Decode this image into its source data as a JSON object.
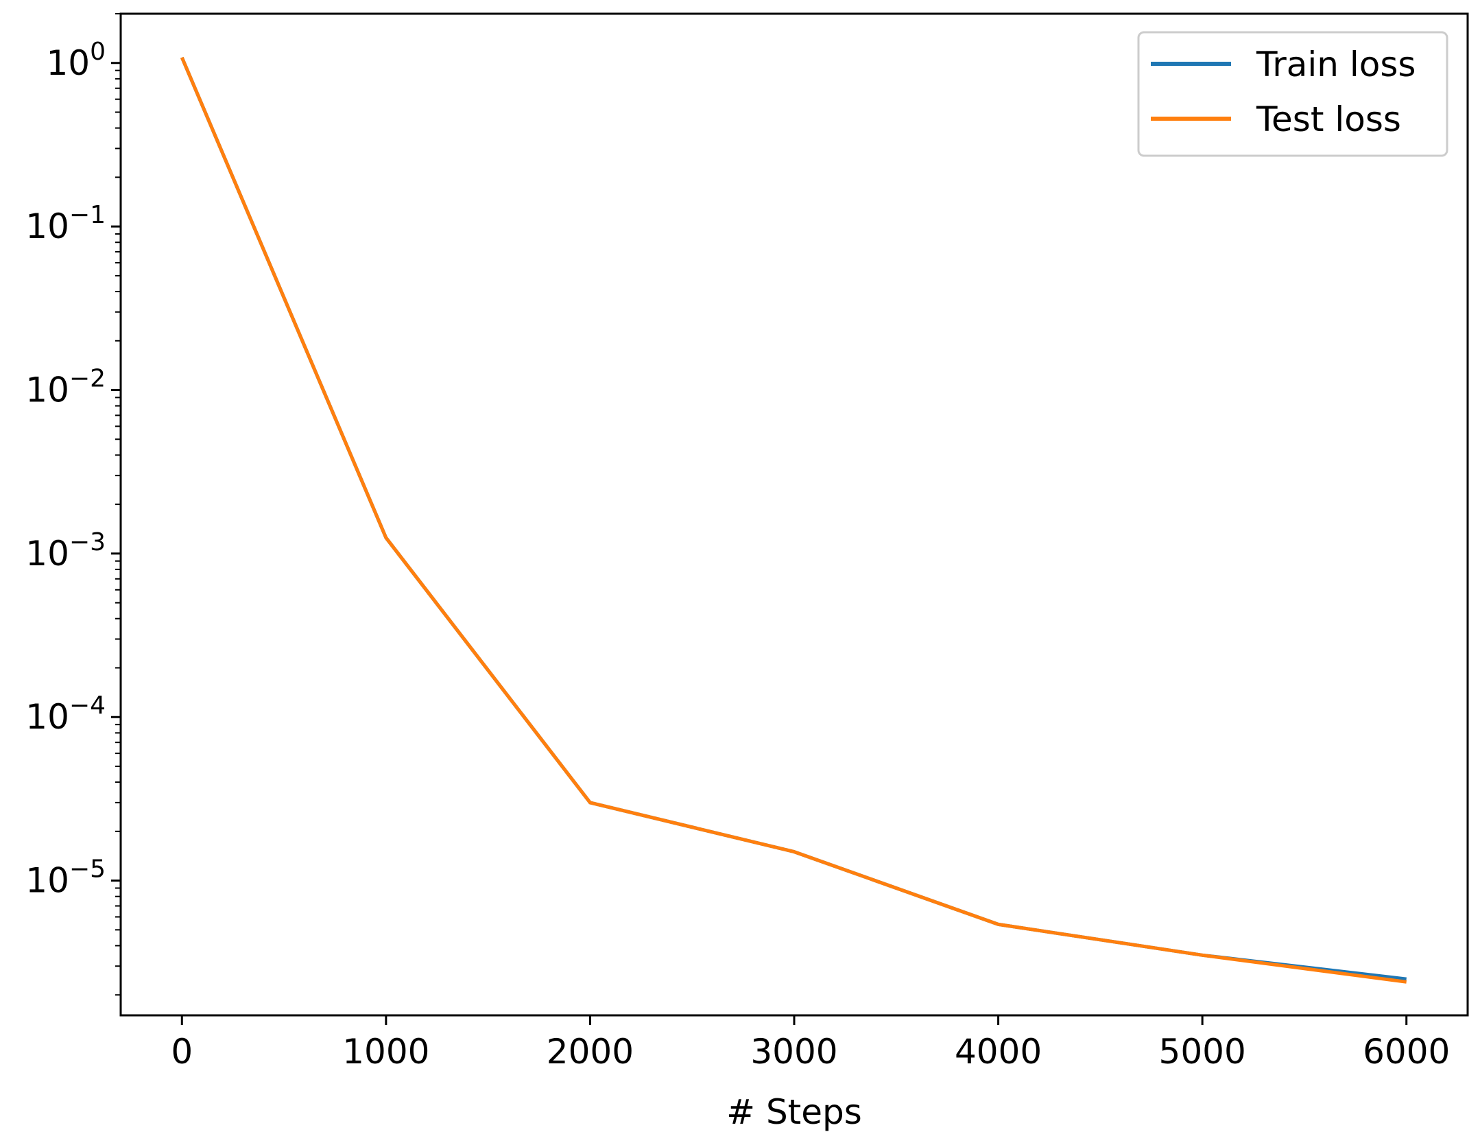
{
  "chart_data": {
    "type": "line",
    "xlabel": "# Steps",
    "ylabel": "",
    "title": "",
    "xlim": [
      -300,
      6300
    ],
    "ylim": [
      1.5e-06,
      2.0
    ],
    "yscale": "log",
    "grid": false,
    "legend_position": "top-right",
    "xticks": [
      {
        "value": 0,
        "label": "0"
      },
      {
        "value": 1000,
        "label": "1000"
      },
      {
        "value": 2000,
        "label": "2000"
      },
      {
        "value": 3000,
        "label": "3000"
      },
      {
        "value": 4000,
        "label": "4000"
      },
      {
        "value": 5000,
        "label": "5000"
      },
      {
        "value": 6000,
        "label": "6000"
      }
    ],
    "yticks": [
      {
        "value": 1,
        "base": "10",
        "exp": "0"
      },
      {
        "value": 0.1,
        "base": "10",
        "exp": "−1"
      },
      {
        "value": 0.01,
        "base": "10",
        "exp": "−2"
      },
      {
        "value": 0.001,
        "base": "10",
        "exp": "−3"
      },
      {
        "value": 0.0001,
        "base": "10",
        "exp": "−4"
      },
      {
        "value": 1e-05,
        "base": "10",
        "exp": "−5"
      }
    ],
    "series": [
      {
        "name": "Train loss",
        "color": "#1f77b4",
        "x": [
          0,
          1000,
          2000,
          3000,
          4000,
          5000,
          6000
        ],
        "y": [
          1.08,
          0.00125,
          3e-05,
          1.5e-05,
          5.4e-06,
          3.5e-06,
          2.5e-06
        ]
      },
      {
        "name": "Test loss",
        "color": "#ff7f0e",
        "x": [
          0,
          1000,
          2000,
          3000,
          4000,
          5000,
          6000
        ],
        "y": [
          1.08,
          0.00125,
          3e-05,
          1.5e-05,
          5.4e-06,
          3.5e-06,
          2.4e-06
        ]
      }
    ]
  }
}
